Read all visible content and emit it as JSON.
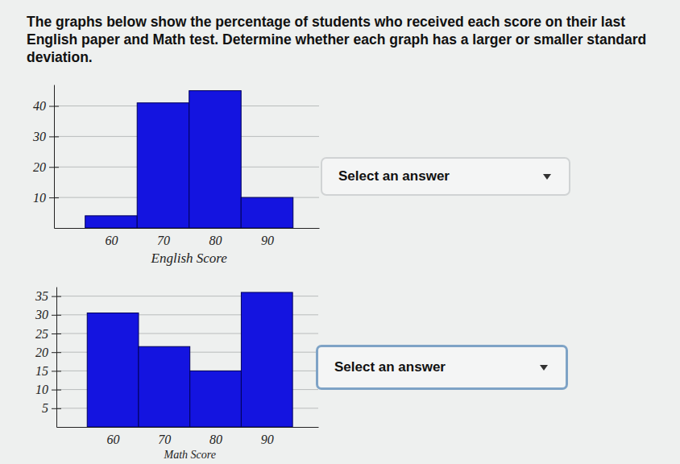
{
  "question": {
    "text": "The graphs below show the percentage of students who received each score on their last English paper and Math test. Determine whether each graph has a larger or smaller standard deviation."
  },
  "chart_data": [
    {
      "type": "histogram",
      "bins": [
        55,
        65,
        75,
        85,
        95
      ],
      "values": [
        4,
        41,
        45,
        10
      ],
      "color": "#1414e0",
      "xlabel": "English Score",
      "xlim": [
        49,
        100
      ],
      "xticks": [
        60,
        70,
        80,
        90
      ],
      "ylim": [
        0,
        47
      ],
      "yticks": [
        10,
        20,
        30,
        40
      ],
      "grid": true
    },
    {
      "type": "histogram",
      "bins": [
        55,
        65,
        75,
        85,
        95
      ],
      "values": [
        30.5,
        21.5,
        15,
        36
      ],
      "color": "#1414e0",
      "xlabel": "Math Score",
      "xlim": [
        49,
        100
      ],
      "xticks": [
        60,
        70,
        80,
        90
      ],
      "ylim": [
        0,
        37.5
      ],
      "yticks": [
        5,
        10,
        15,
        20,
        25,
        30,
        35
      ],
      "grid": true
    }
  ],
  "answers": [
    {
      "placeholder": "Select an answer"
    },
    {
      "placeholder": "Select an answer"
    }
  ]
}
